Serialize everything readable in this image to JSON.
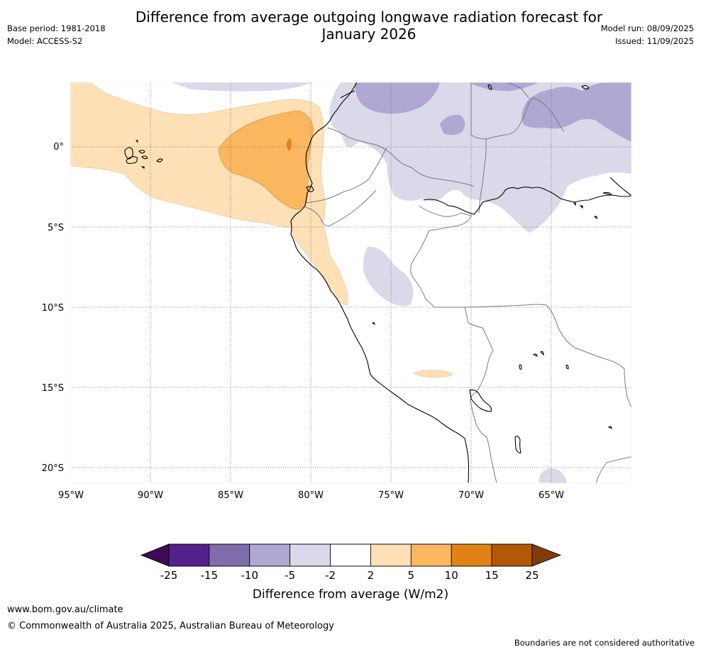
{
  "header": {
    "title_line1": "Difference from average outgoing longwave radiation forecast for",
    "title_line2": "January 2026",
    "base_period": "Base period: 1981-2018",
    "model": "Model: ACCESS-S2",
    "model_run": "Model run: 08/09/2025",
    "issued": "Issued: 11/09/2025"
  },
  "map": {
    "lat_labels": [
      "0°",
      "5°S",
      "10°S",
      "15°S",
      "20°S"
    ],
    "lon_labels": [
      "95°W",
      "90°W",
      "85°W",
      "80°W",
      "75°W",
      "70°W",
      "65°W"
    ]
  },
  "legend": {
    "title": "Difference from average (W/m2)",
    "tick_labels": [
      "-25",
      "-15",
      "-10",
      "-5",
      "-2",
      "2",
      "5",
      "10",
      "15",
      "25"
    ],
    "colors": [
      "#3f0a57",
      "#54218a",
      "#7f6eab",
      "#b1a7d3",
      "#d9d9ea",
      "#ffffff",
      "#fee0b6",
      "#fbb660",
      "#e08214",
      "#b35806",
      "#7f3b08"
    ]
  },
  "footer": {
    "url": "www.bom.gov.au/climate",
    "copyright": "© Commonwealth of Australia 2025, Australian Bureau of Meteorology",
    "disclaimer": "Boundaries are not considered authoritative"
  }
}
